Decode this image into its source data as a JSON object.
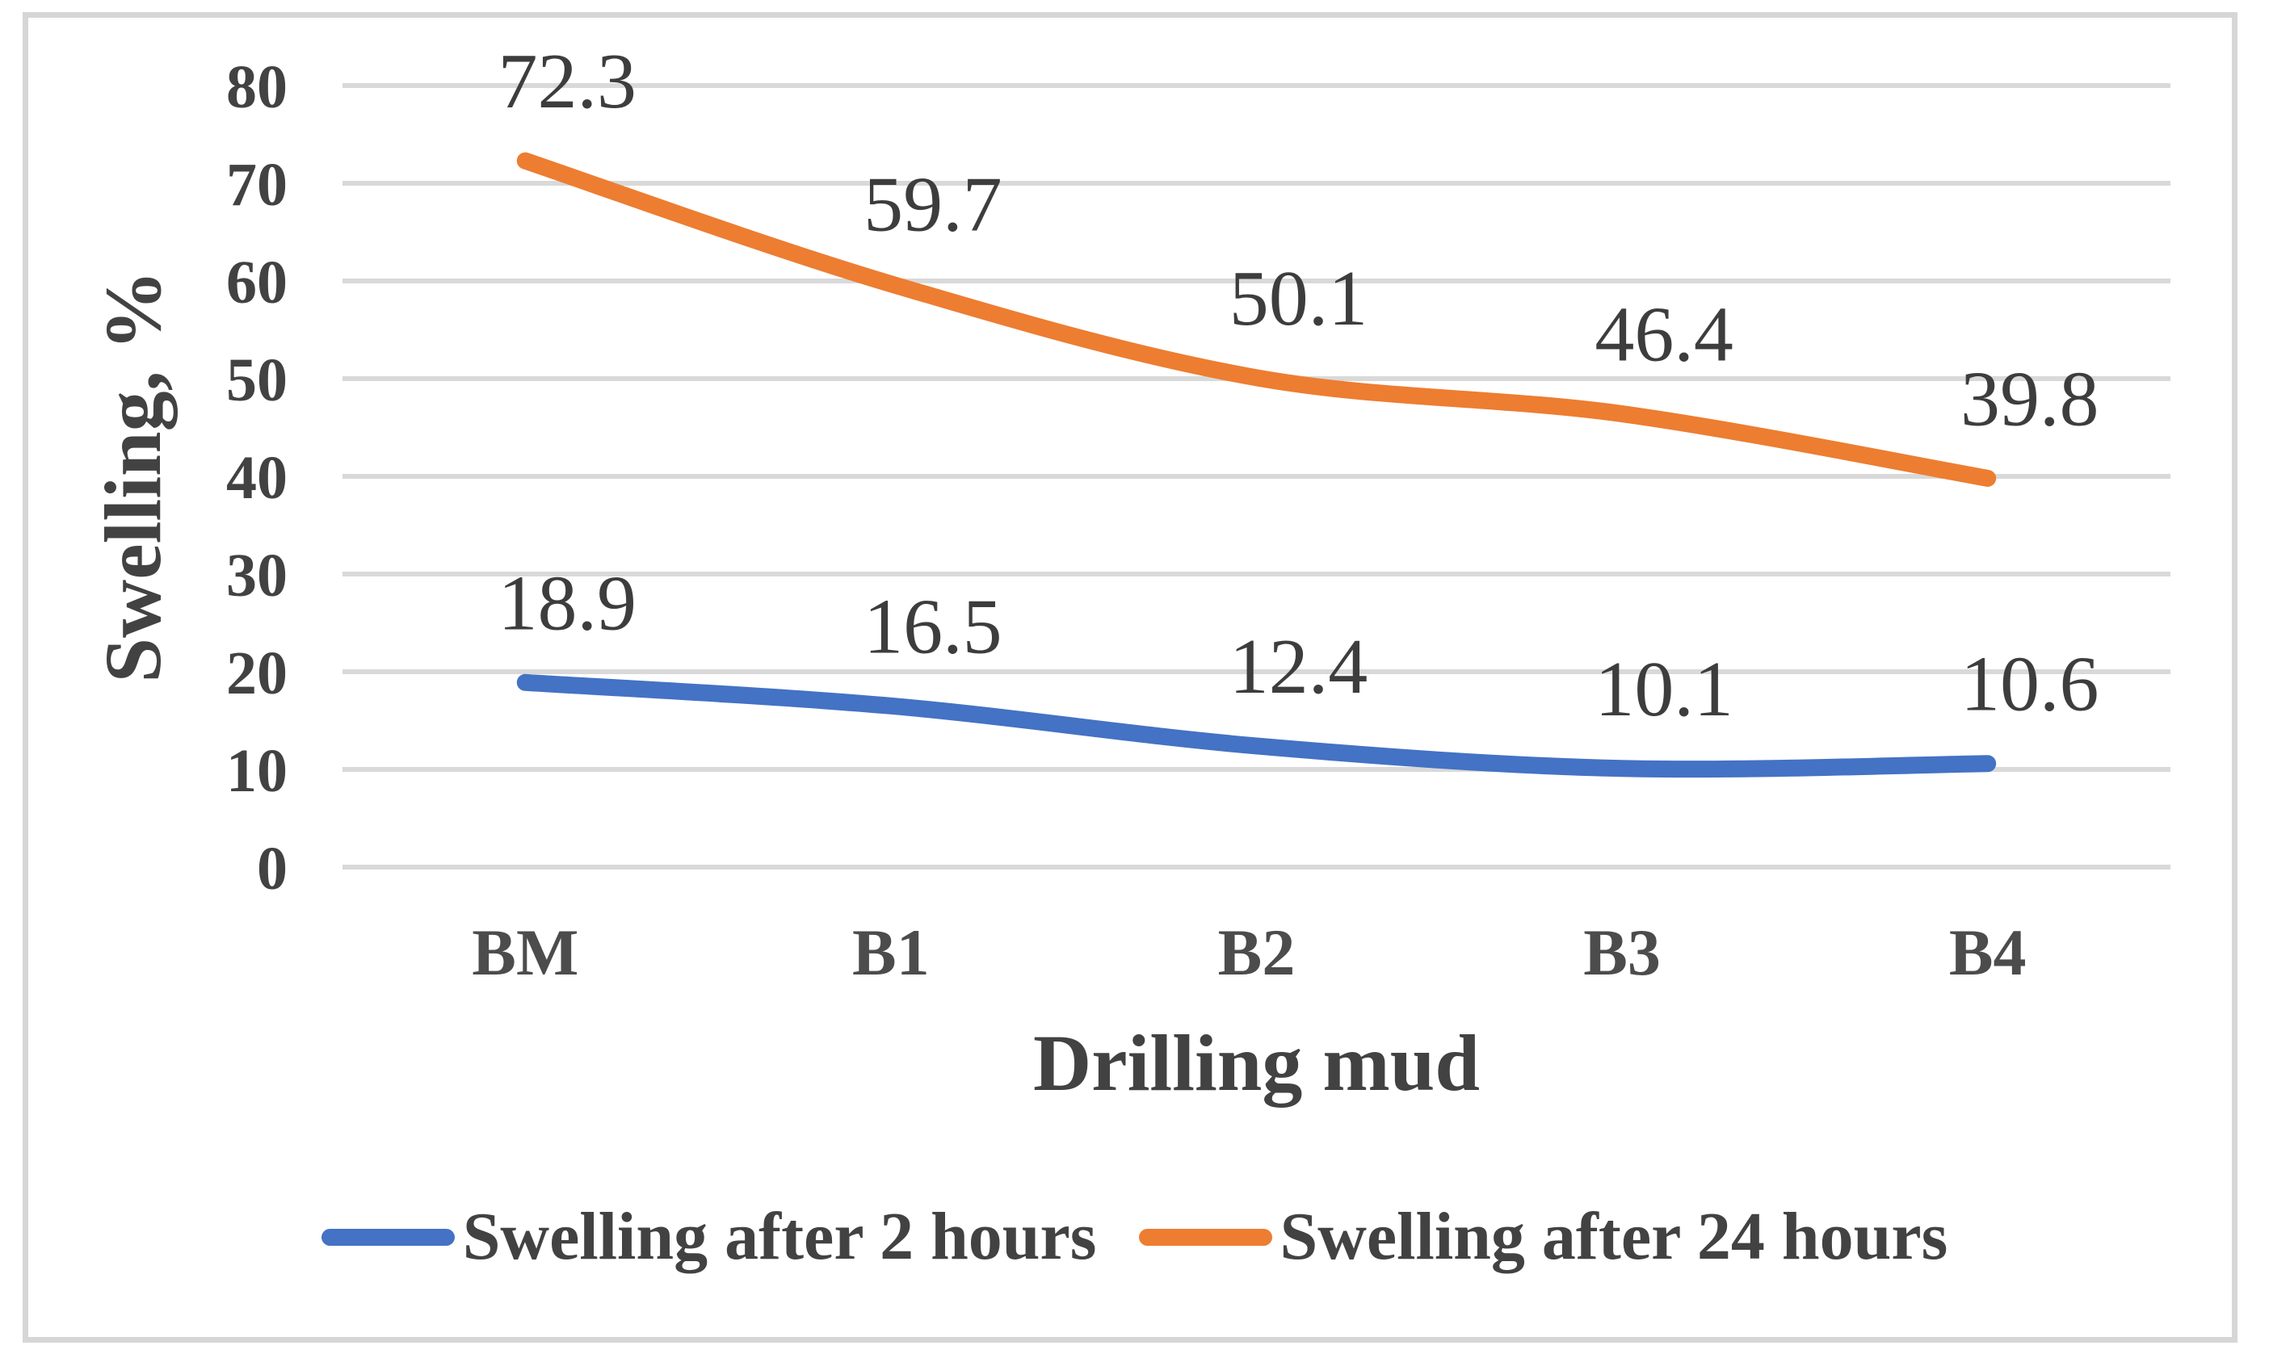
{
  "figure": {
    "background": "#ffffff",
    "border_color": "#D6D6D6"
  },
  "chart_data": {
    "type": "line",
    "categories": [
      "BM",
      "B1",
      "B2",
      "B3",
      "B4"
    ],
    "series": [
      {
        "name": "Swelling after 2 hours",
        "color": "#4472C4",
        "values": [
          18.9,
          16.5,
          12.4,
          10.1,
          10.6
        ],
        "point_labels": [
          "18.9",
          "16.5",
          "12.4",
          "10.1",
          "10.6"
        ]
      },
      {
        "name": "Swelling after 24 hours",
        "color": "#ED7D31",
        "values": [
          72.3,
          59.7,
          50.1,
          46.4,
          39.8
        ],
        "point_labels": [
          "72.3",
          "59.7",
          "50.1",
          "46.4",
          "39.8"
        ]
      }
    ],
    "title": "",
    "xlabel": "Drilling mud",
    "ylabel": "Swelling, %",
    "ylim": [
      0,
      80
    ],
    "y_ticks": [
      0,
      10,
      20,
      30,
      40,
      50,
      60,
      70,
      80
    ],
    "grid": "horizontal-only",
    "gridline_color": "#D9D9D9",
    "text_color": "#424242",
    "legend_position": "bottom",
    "line_style": "smooth",
    "data_labels_position": "above"
  }
}
